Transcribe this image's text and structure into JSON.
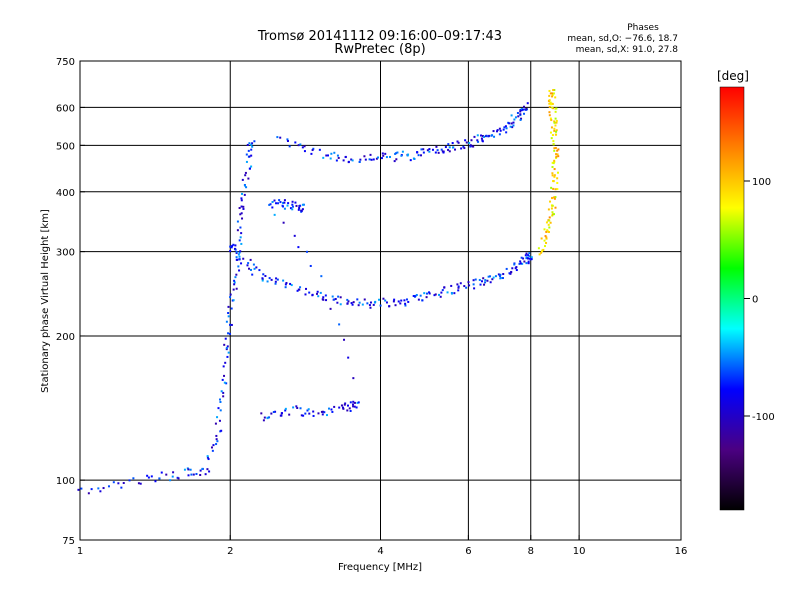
{
  "header": {
    "title_line1": "Tromsø 20141112 09:16:00–09:17:43",
    "title_line2": "RwPretec (8p)"
  },
  "stats": {
    "heading": "Phases",
    "line1": "mean, sd,O: −76.6, 18.7",
    "line2": "mean, sd,X:  91.0, 27.8"
  },
  "chart_data": {
    "type": "scatter",
    "xlabel": "Frequency [MHz]",
    "ylabel": "Stationary phase Virtual Height [km]",
    "x_scale": "log",
    "y_scale": "log",
    "xlim": [
      1,
      16
    ],
    "ylim": [
      75,
      750
    ],
    "x_ticks": [
      1,
      2,
      4,
      6,
      8,
      10,
      16
    ],
    "y_ticks": [
      75,
      100,
      200,
      300,
      400,
      500,
      600,
      750
    ],
    "x_gridlines": [
      2,
      4,
      6,
      8,
      10
    ],
    "y_gridlines": [
      100,
      200,
      300,
      400,
      500,
      600
    ],
    "grid": true,
    "colorbar": {
      "title": "[deg]",
      "range": [
        -180,
        180
      ],
      "ticks": [
        100,
        0,
        -100
      ],
      "colors": [
        "#ff0000",
        "#ff8000",
        "#ffff00",
        "#00ff00",
        "#00ffff",
        "#0000ff",
        "#4b0082",
        "#000000"
      ]
    },
    "series": [
      {
        "type": "F-trace (O)",
        "phase_mean": -76.6,
        "points": [
          [
            2.0,
            310
          ],
          [
            2.1,
            290
          ],
          [
            2.3,
            268
          ],
          [
            2.6,
            255
          ],
          [
            3.0,
            243
          ],
          [
            3.4,
            235
          ],
          [
            3.8,
            233
          ],
          [
            4.3,
            235
          ],
          [
            4.8,
            240
          ],
          [
            5.4,
            247
          ],
          [
            6.0,
            255
          ],
          [
            6.6,
            262
          ],
          [
            7.2,
            272
          ],
          [
            7.7,
            285
          ],
          [
            8.0,
            295
          ]
        ]
      },
      {
        "type": "F-trace (X)",
        "phase_mean": 91.0,
        "points": [
          [
            8.3,
            300
          ],
          [
            8.6,
            330
          ],
          [
            8.8,
            360
          ],
          [
            8.9,
            400
          ],
          [
            8.95,
            450
          ],
          [
            8.95,
            500
          ],
          [
            8.9,
            550
          ],
          [
            8.85,
            600
          ],
          [
            8.8,
            640
          ]
        ]
      },
      {
        "type": "multi-hop 2F",
        "phase_mean": -76.6,
        "points": [
          [
            2.5,
            510
          ],
          [
            3.0,
            480
          ],
          [
            3.5,
            470
          ],
          [
            4.0,
            470
          ],
          [
            4.5,
            475
          ],
          [
            5.0,
            485
          ],
          [
            5.5,
            495
          ],
          [
            6.0,
            505
          ],
          [
            6.5,
            520
          ],
          [
            7.0,
            540
          ],
          [
            7.5,
            570
          ],
          [
            7.8,
            600
          ]
        ]
      },
      {
        "type": "E/Es layer",
        "phase_mean": -76.6,
        "points": [
          [
            1.0,
            95
          ],
          [
            1.3,
            100
          ],
          [
            1.6,
            103
          ],
          [
            1.8,
            105
          ],
          [
            1.9,
            130
          ],
          [
            1.95,
            170
          ],
          [
            2.0,
            220
          ],
          [
            2.05,
            270
          ],
          [
            2.1,
            350
          ],
          [
            2.15,
            420
          ],
          [
            2.2,
            500
          ]
        ]
      },
      {
        "type": "sporadic patches",
        "phase_mean": -76.6,
        "points": [
          [
            2.3,
            135
          ],
          [
            2.6,
            140
          ],
          [
            3.0,
            138
          ],
          [
            3.4,
            142
          ],
          [
            3.6,
            143
          ],
          [
            2.4,
            380
          ],
          [
            2.6,
            375
          ],
          [
            2.8,
            370
          ]
        ]
      }
    ]
  }
}
